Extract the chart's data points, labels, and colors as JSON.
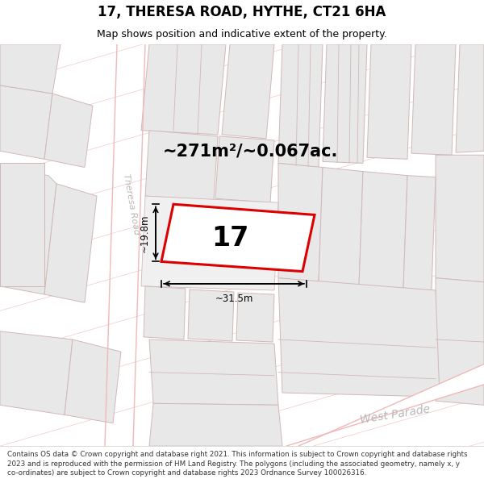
{
  "title": "17, THERESA ROAD, HYTHE, CT21 6HA",
  "subtitle": "Map shows position and indicative extent of the property.",
  "area_text": "~271m²/~0.067ac.",
  "number_label": "17",
  "dim1_label": "~19.8m",
  "dim2_label": "~31.5m",
  "road_label": "Theresa Road",
  "road2_label": "West Parade",
  "footer": "Contains OS data © Crown copyright and database right 2021. This information is subject to Crown copyright and database rights 2023 and is reproduced with the permission of HM Land Registry. The polygons (including the associated geometry, namely x, y co-ordinates) are subject to Crown copyright and database rights 2023 Ordnance Survey 100026316.",
  "map_bg": "#ffffff",
  "building_fill": "#e8e8e8",
  "building_edge": "#d0b8b8",
  "road_line_color": "#f0b8b8",
  "plot_border_color": "#dd0000",
  "plot_fill": "#ffffff",
  "dim_color": "#000000",
  "area_text_color": "#000000",
  "road_label_color": "#b8b8b8",
  "road2_label_color": "#b8b8b8",
  "title_color": "#000000",
  "footer_color": "#333333",
  "footer_bg": "#ffffff",
  "title_bg": "#ffffff"
}
